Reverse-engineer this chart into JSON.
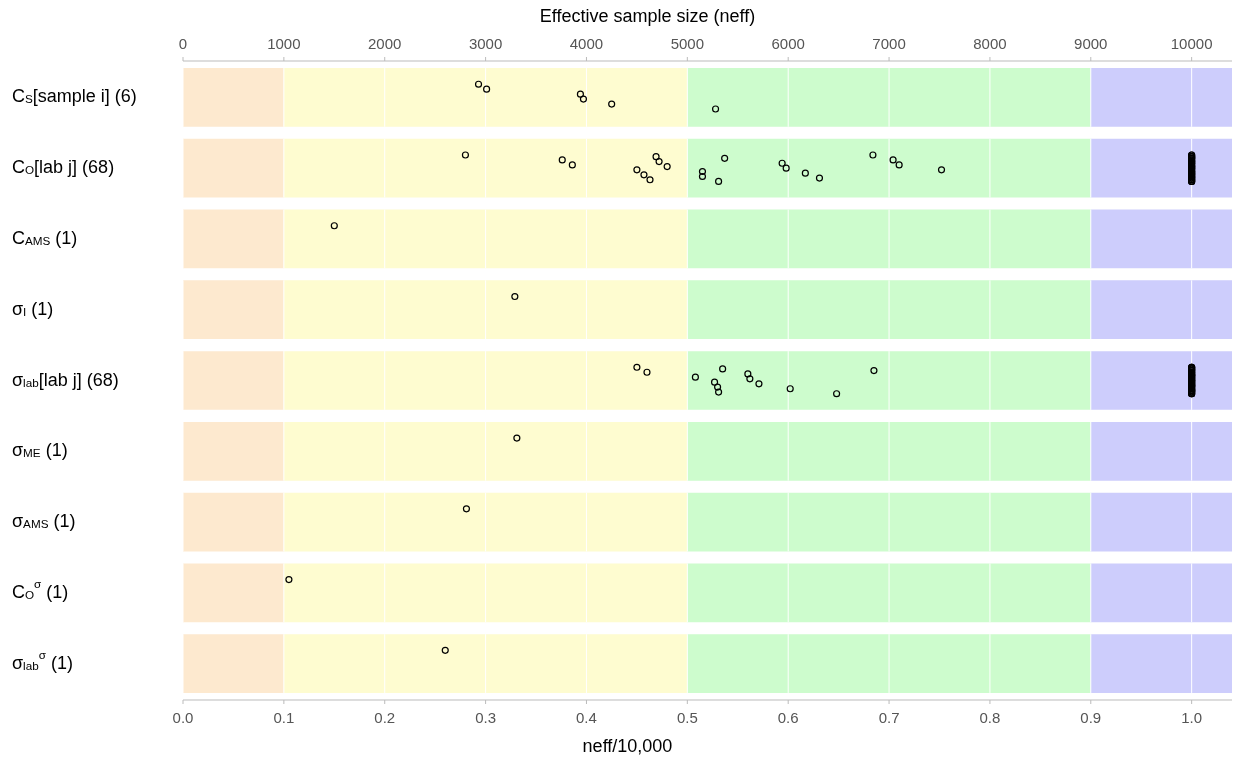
{
  "chart_data": {
    "type": "scatter",
    "orientation": "horizontal",
    "categories": [
      "C$_{S}$[sample i] (6)",
      "C$_{O}$[lab j] (68)",
      "C$_{AMS}$ (1)",
      "σ$_{I}$ (1)",
      "σ$_{lab}$[lab j] (68)",
      "σ$_{ME}$ (1)",
      "σ$_{AMS}$ (1)",
      "C$_{O}$$^{σ}$ (1)",
      "σ$_{lab}$$^{σ}$ (1)"
    ],
    "xlabel": "neff/10,000",
    "x2label": "Effective sample size (neff)",
    "xlim": [
      0,
      1.04
    ],
    "xticks": [
      {
        "value": 0,
        "label": "0.0"
      },
      0.1,
      0.2,
      0.3,
      0.4,
      0.5,
      0.6,
      0.7,
      0.8,
      0.9,
      {
        "value": 1,
        "label": "1.0"
      }
    ],
    "x2lim": [
      0,
      10400
    ],
    "x2ticks": [
      0,
      1000,
      2000,
      3000,
      4000,
      5000,
      6000,
      7000,
      8000,
      9000,
      10000
    ],
    "grid": "x",
    "marker": "circle",
    "bands": [
      {
        "axis": "x",
        "from": 0,
        "to": 0.1,
        "color": "#fde9cf"
      },
      {
        "axis": "x",
        "from": 0.1,
        "to": 0.5,
        "color": "#fefcd0"
      },
      {
        "axis": "x",
        "from": 0.5,
        "to": 0.9,
        "color": "#cdfccd"
      },
      {
        "axis": "x",
        "from": 0.9,
        "to": 1.04,
        "color": "#cdcdfc"
      }
    ],
    "series": [
      {
        "color": "#000000",
        "x": [
          "C$_{S}$[sample i] (6)",
          "C$_{S}$[sample i] (6)",
          "C$_{S}$[sample i] (6)",
          "C$_{S}$[sample i] (6)",
          "C$_{S}$[sample i] (6)",
          "C$_{S}$[sample i] (6)"
        ],
        "values": [
          0.293,
          0.301,
          0.394,
          0.397,
          0.425,
          0.528
        ]
      },
      {
        "color": "#000000",
        "x": [
          "C$_{O}$[lab j] (68)",
          "C$_{O}$[lab j] (68)",
          "C$_{O}$[lab j] (68)",
          "C$_{O}$[lab j] (68)",
          "C$_{O}$[lab j] (68)",
          "C$_{O}$[lab j] (68)",
          "C$_{O}$[lab j] (68)",
          "C$_{O}$[lab j] (68)",
          "C$_{O}$[lab j] (68)",
          "C$_{O}$[lab j] (68)",
          "C$_{O}$[lab j] (68)",
          "C$_{O}$[lab j] (68)",
          "C$_{O}$[lab j] (68)",
          "C$_{O}$[lab j] (68)",
          "C$_{O}$[lab j] (68)",
          "C$_{O}$[lab j] (68)",
          "C$_{O}$[lab j] (68)",
          "C$_{O}$[lab j] (68)",
          "C$_{O}$[lab j] (68)",
          "C$_{O}$[lab j] (68)",
          "C$_{O}$[lab j] (68)",
          "C$_{O}$[lab j] (68)",
          "C$_{O}$[lab j] (68)",
          "C$_{O}$[lab j] (68)",
          "C$_{O}$[lab j] (68)",
          "C$_{O}$[lab j] (68)",
          "C$_{O}$[lab j] (68)",
          "C$_{O}$[lab j] (68)",
          "C$_{O}$[lab j] (68)",
          "C$_{O}$[lab j] (68)",
          "C$_{O}$[lab j] (68)",
          "C$_{O}$[lab j] (68)",
          "C$_{O}$[lab j] (68)",
          "C$_{O}$[lab j] (68)",
          "C$_{O}$[lab j] (68)",
          "C$_{O}$[lab j] (68)",
          "C$_{O}$[lab j] (68)",
          "C$_{O}$[lab j] (68)",
          "C$_{O}$[lab j] (68)",
          "C$_{O}$[lab j] (68)",
          "C$_{O}$[lab j] (68)",
          "C$_{O}$[lab j] (68)",
          "C$_{O}$[lab j] (68)",
          "C$_{O}$[lab j] (68)",
          "C$_{O}$[lab j] (68)",
          "C$_{O}$[lab j] (68)",
          "C$_{O}$[lab j] (68)",
          "C$_{O}$[lab j] (68)",
          "C$_{O}$[lab j] (68)",
          "C$_{O}$[lab j] (68)",
          "C$_{O}$[lab j] (68)",
          "C$_{O}$[lab j] (68)",
          "C$_{O}$[lab j] (68)",
          "C$_{O}$[lab j] (68)",
          "C$_{O}$[lab j] (68)",
          "C$_{O}$[lab j] (68)",
          "C$_{O}$[lab j] (68)",
          "C$_{O}$[lab j] (68)",
          "C$_{O}$[lab j] (68)",
          "C$_{O}$[lab j] (68)",
          "C$_{O}$[lab j] (68)",
          "C$_{O}$[lab j] (68)",
          "C$_{O}$[lab j] (68)",
          "C$_{O}$[lab j] (68)",
          "C$_{O}$[lab j] (68)",
          "C$_{O}$[lab j] (68)",
          "C$_{O}$[lab j] (68)",
          "C$_{O}$[lab j] (68)"
        ],
        "values": [
          0.28,
          0.376,
          0.386,
          0.45,
          0.457,
          0.463,
          0.469,
          0.472,
          0.48,
          0.515,
          0.515,
          0.531,
          0.537,
          0.594,
          0.598,
          0.617,
          0.631,
          0.684,
          0.704,
          0.71,
          0.752,
          1,
          1,
          1,
          1,
          1,
          1,
          1,
          1,
          1,
          1,
          1,
          1,
          1,
          1,
          1,
          1,
          1,
          1,
          1,
          1,
          1,
          1,
          1,
          1,
          1,
          1,
          1,
          1,
          1,
          1,
          1,
          1,
          1,
          1,
          1,
          1,
          1,
          1,
          1,
          1,
          1,
          1,
          1,
          1,
          1,
          1,
          1
        ]
      },
      {
        "color": "#000000",
        "x": [
          "C$_{AMS}$ (1)"
        ],
        "values": [
          0.15
        ]
      },
      {
        "color": "#000000",
        "x": [
          "σ$_{I}$ (1)"
        ],
        "values": [
          0.329
        ]
      },
      {
        "color": "#000000",
        "x": [
          "σ$_{lab}$[lab j] (68)",
          "σ$_{lab}$[lab j] (68)",
          "σ$_{lab}$[lab j] (68)",
          "σ$_{lab}$[lab j] (68)",
          "σ$_{lab}$[lab j] (68)",
          "σ$_{lab}$[lab j] (68)",
          "σ$_{lab}$[lab j] (68)",
          "σ$_{lab}$[lab j] (68)",
          "σ$_{lab}$[lab j] (68)",
          "σ$_{lab}$[lab j] (68)",
          "σ$_{lab}$[lab j] (68)",
          "σ$_{lab}$[lab j] (68)",
          "σ$_{lab}$[lab j] (68)",
          "σ$_{lab}$[lab j] (68)",
          "σ$_{lab}$[lab j] (68)",
          "σ$_{lab}$[lab j] (68)",
          "σ$_{lab}$[lab j] (68)",
          "σ$_{lab}$[lab j] (68)",
          "σ$_{lab}$[lab j] (68)",
          "σ$_{lab}$[lab j] (68)",
          "σ$_{lab}$[lab j] (68)",
          "σ$_{lab}$[lab j] (68)",
          "σ$_{lab}$[lab j] (68)",
          "σ$_{lab}$[lab j] (68)",
          "σ$_{lab}$[lab j] (68)",
          "σ$_{lab}$[lab j] (68)",
          "σ$_{lab}$[lab j] (68)",
          "σ$_{lab}$[lab j] (68)",
          "σ$_{lab}$[lab j] (68)",
          "σ$_{lab}$[lab j] (68)",
          "σ$_{lab}$[lab j] (68)",
          "σ$_{lab}$[lab j] (68)",
          "σ$_{lab}$[lab j] (68)",
          "σ$_{lab}$[lab j] (68)",
          "σ$_{lab}$[lab j] (68)",
          "σ$_{lab}$[lab j] (68)",
          "σ$_{lab}$[lab j] (68)",
          "σ$_{lab}$[lab j] (68)",
          "σ$_{lab}$[lab j] (68)",
          "σ$_{lab}$[lab j] (68)",
          "σ$_{lab}$[lab j] (68)",
          "σ$_{lab}$[lab j] (68)",
          "σ$_{lab}$[lab j] (68)",
          "σ$_{lab}$[lab j] (68)",
          "σ$_{lab}$[lab j] (68)",
          "σ$_{lab}$[lab j] (68)",
          "σ$_{lab}$[lab j] (68)",
          "σ$_{lab}$[lab j] (68)",
          "σ$_{lab}$[lab j] (68)",
          "σ$_{lab}$[lab j] (68)",
          "σ$_{lab}$[lab j] (68)",
          "σ$_{lab}$[lab j] (68)",
          "σ$_{lab}$[lab j] (68)",
          "σ$_{lab}$[lab j] (68)",
          "σ$_{lab}$[lab j] (68)",
          "σ$_{lab}$[lab j] (68)",
          "σ$_{lab}$[lab j] (68)",
          "σ$_{lab}$[lab j] (68)",
          "σ$_{lab}$[lab j] (68)",
          "σ$_{lab}$[lab j] (68)",
          "σ$_{lab}$[lab j] (68)",
          "σ$_{lab}$[lab j] (68)",
          "σ$_{lab}$[lab j] (68)",
          "σ$_{lab}$[lab j] (68)",
          "σ$_{lab}$[lab j] (68)",
          "σ$_{lab}$[lab j] (68)",
          "σ$_{lab}$[lab j] (68)",
          "σ$_{lab}$[lab j] (68)"
        ],
        "values": [
          0.45,
          0.46,
          0.508,
          0.527,
          0.53,
          0.531,
          0.535,
          0.56,
          0.562,
          0.571,
          0.602,
          0.648,
          0.685,
          1,
          1,
          1,
          1,
          1,
          1,
          1,
          1,
          1,
          1,
          1,
          1,
          1,
          1,
          1,
          1,
          1,
          1,
          1,
          1,
          1,
          1,
          1,
          1,
          1,
          1,
          1,
          1,
          1,
          1,
          1,
          1,
          1,
          1,
          1,
          1,
          1,
          1,
          1,
          1,
          1,
          1,
          1,
          1,
          1,
          1,
          1,
          1,
          1,
          1,
          1,
          1,
          1,
          1,
          1
        ]
      },
      {
        "color": "#000000",
        "x": [
          "σ$_{ME}$ (1)"
        ],
        "values": [
          0.331
        ]
      },
      {
        "color": "#000000",
        "x": [
          "σ$_{AMS}$ (1)"
        ],
        "values": [
          0.281
        ]
      },
      {
        "color": "#000000",
        "x": [
          "C$_{O}$$^{σ}$ (1)"
        ],
        "values": [
          0.105
        ]
      },
      {
        "color": "#000000",
        "x": [
          "σ$_{lab}$$^{σ}$ (1)"
        ],
        "values": [
          0.26
        ]
      }
    ]
  }
}
